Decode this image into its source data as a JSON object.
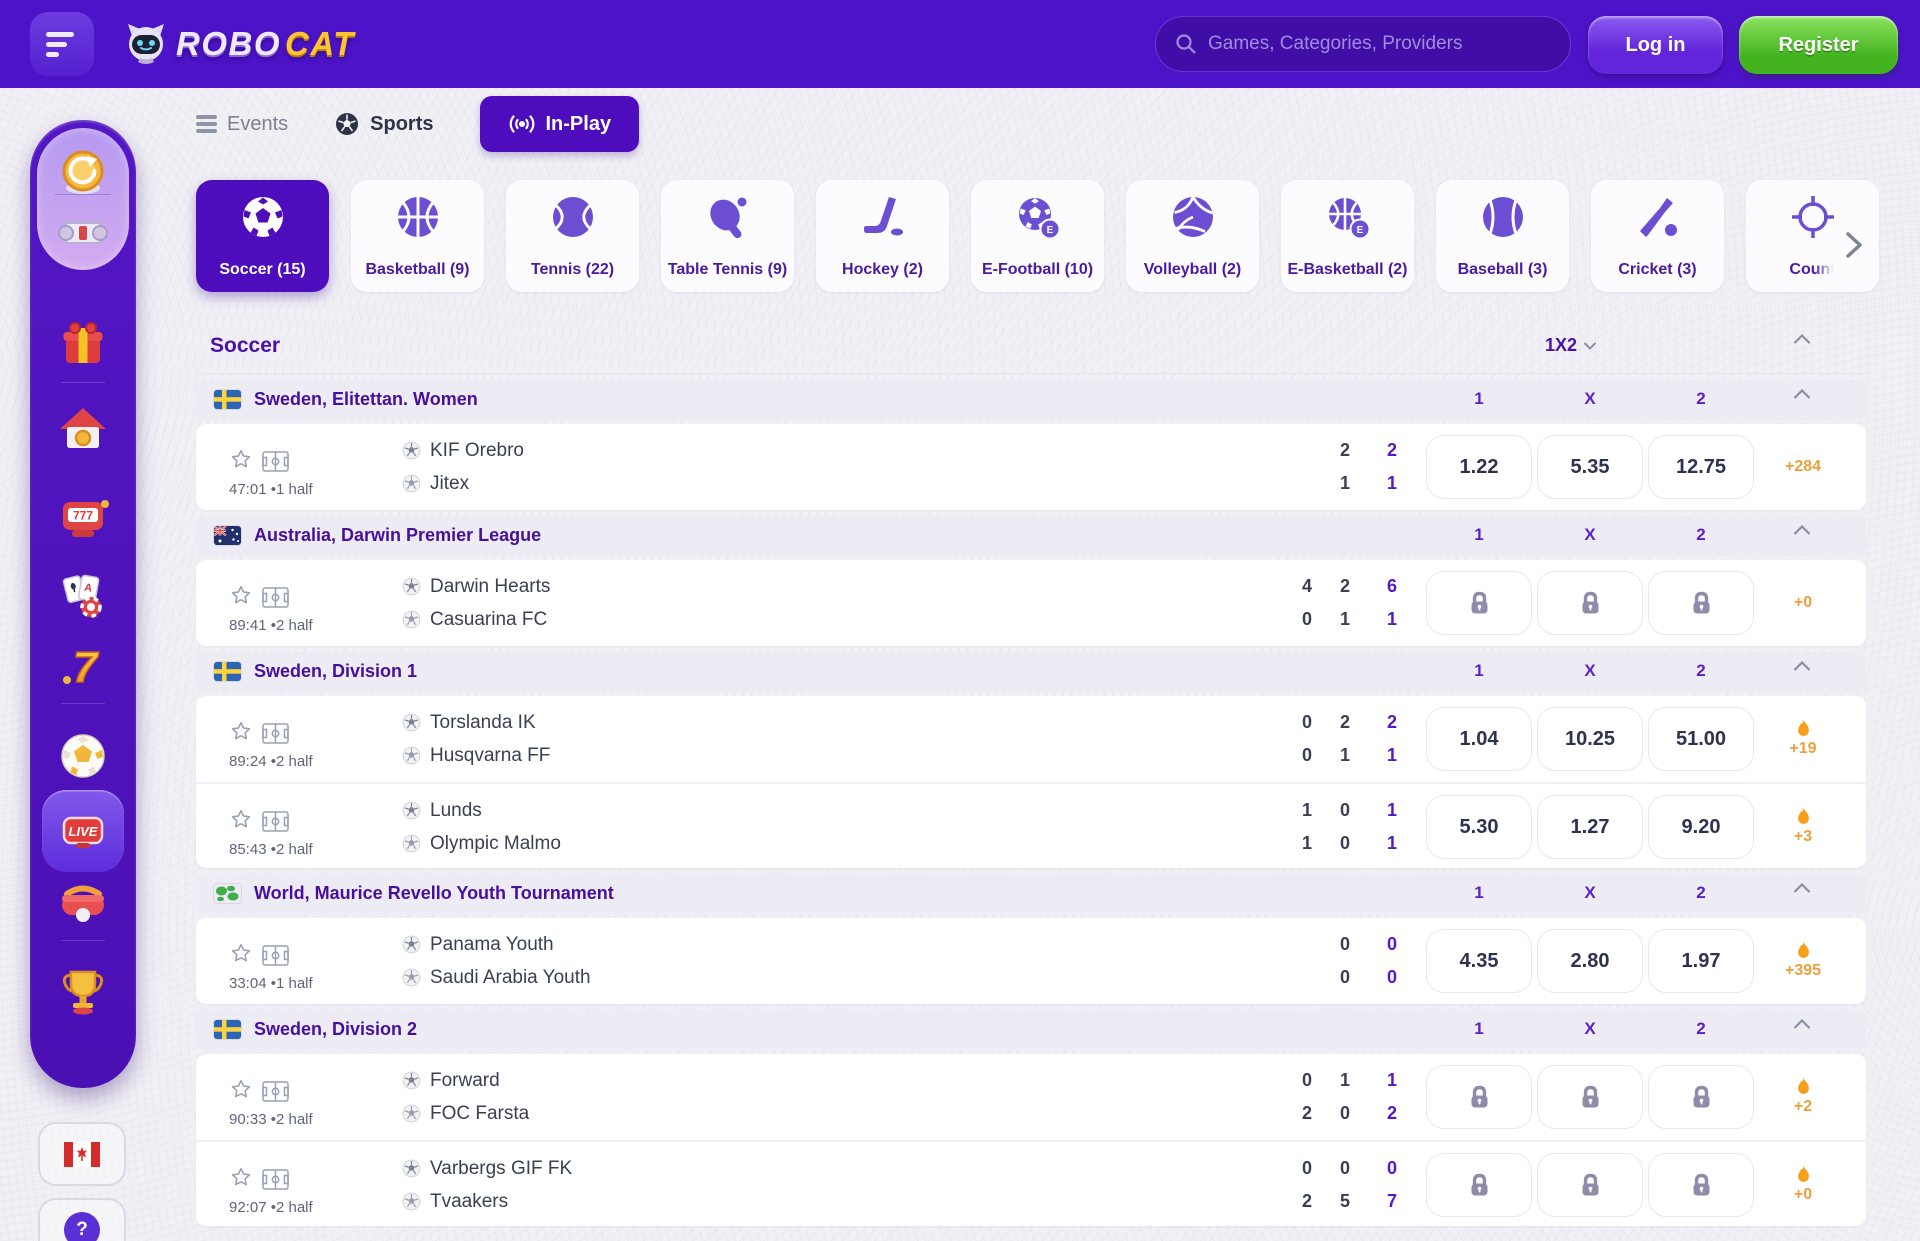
{
  "header": {
    "logo_robo": "Robo",
    "logo_cat": "Cat",
    "search_placeholder": "Games, Categories, Providers",
    "login_label": "Log in",
    "register_label": "Register"
  },
  "nav_tabs": [
    {
      "label": "Events",
      "icon": "menu-icon",
      "active": false
    },
    {
      "label": "Sports",
      "icon": "soccer-ball-icon",
      "active": false
    },
    {
      "label": "In-Play",
      "icon": "broadcast-icon",
      "active": true
    }
  ],
  "sport_chips": [
    {
      "label": "Soccer (15)",
      "icon": "soccer",
      "active": true
    },
    {
      "label": "Basketball (9)",
      "icon": "basketball",
      "active": false
    },
    {
      "label": "Tennis (22)",
      "icon": "tennis",
      "active": false
    },
    {
      "label": "Table Tennis (9)",
      "icon": "table-tennis",
      "active": false
    },
    {
      "label": "Hockey (2)",
      "icon": "hockey",
      "active": false
    },
    {
      "label": "E-Football (10)",
      "icon": "e-football",
      "active": false
    },
    {
      "label": "Volleyball (2)",
      "icon": "volleyball",
      "active": false
    },
    {
      "label": "E-Basketball (2)",
      "icon": "e-basketball",
      "active": false
    },
    {
      "label": "Baseball (3)",
      "icon": "baseball",
      "active": false
    },
    {
      "label": "Cricket (3)",
      "icon": "cricket",
      "active": false
    },
    {
      "label": "Count",
      "icon": "crosshair",
      "active": false,
      "truncated": true
    }
  ],
  "market": {
    "title": "Soccer",
    "selector": "1X2",
    "columns": [
      "1",
      "X",
      "2"
    ]
  },
  "groups": [
    {
      "league": "Sweden, Elitettan. Women",
      "flag": "sweden",
      "matches": [
        {
          "time": "47:01",
          "period": "•1 half",
          "teams": [
            "KIF Orebro",
            "Jitex"
          ],
          "scores": [
            [
              "2",
              "2"
            ],
            [
              "1",
              "1"
            ]
          ],
          "odds": [
            "1.22",
            "5.35",
            "12.75"
          ],
          "locked": false,
          "extra": "+284",
          "flame": false
        }
      ]
    },
    {
      "league": "Australia, Darwin Premier League",
      "flag": "australia",
      "matches": [
        {
          "time": "89:41",
          "period": "•2 half",
          "teams": [
            "Darwin Hearts",
            "Casuarina FC"
          ],
          "scores": [
            [
              "4",
              "2",
              "6"
            ],
            [
              "0",
              "1",
              "1"
            ]
          ],
          "odds": null,
          "locked": true,
          "extra": "+0",
          "flame": false
        }
      ]
    },
    {
      "league": "Sweden, Division 1",
      "flag": "sweden",
      "matches": [
        {
          "time": "89:24",
          "period": "•2 half",
          "teams": [
            "Torslanda IK",
            "Husqvarna FF"
          ],
          "scores": [
            [
              "0",
              "2",
              "2"
            ],
            [
              "0",
              "1",
              "1"
            ]
          ],
          "odds": [
            "1.04",
            "10.25",
            "51.00"
          ],
          "locked": false,
          "extra": "+19",
          "flame": true
        },
        {
          "time": "85:43",
          "period": "•2 half",
          "teams": [
            "Lunds",
            "Olympic Malmo"
          ],
          "scores": [
            [
              "1",
              "0",
              "1"
            ],
            [
              "1",
              "0",
              "1"
            ]
          ],
          "odds": [
            "5.30",
            "1.27",
            "9.20"
          ],
          "locked": false,
          "extra": "+3",
          "flame": true
        }
      ]
    },
    {
      "league": "World, Maurice Revello Youth Tournament",
      "flag": "world",
      "matches": [
        {
          "time": "33:04",
          "period": "•1 half",
          "teams": [
            "Panama Youth",
            "Saudi Arabia Youth"
          ],
          "scores": [
            [
              "0",
              "0"
            ],
            [
              "0",
              "0"
            ]
          ],
          "odds": [
            "4.35",
            "2.80",
            "1.97"
          ],
          "locked": false,
          "extra": "+395",
          "flame": true
        }
      ]
    },
    {
      "league": "Sweden, Division 2",
      "flag": "sweden",
      "matches": [
        {
          "time": "90:33",
          "period": "•2 half",
          "teams": [
            "Forward",
            "FOC Farsta"
          ],
          "scores": [
            [
              "0",
              "1",
              "1"
            ],
            [
              "2",
              "0",
              "2"
            ]
          ],
          "odds": null,
          "locked": true,
          "extra": "+2",
          "flame": true
        },
        {
          "time": "92:07",
          "period": "•2 half",
          "teams": [
            "Varbergs GIF FK",
            "Tvaakers"
          ],
          "scores": [
            [
              "0",
              "0",
              "0"
            ],
            [
              "2",
              "5",
              "7"
            ]
          ],
          "odds": null,
          "locked": true,
          "extra": "+0",
          "flame": true
        }
      ]
    }
  ],
  "sidebar": {
    "items": [
      {
        "icon": "coin-refresh-icon"
      },
      {
        "icon": "scroll-icon"
      },
      {
        "icon": "gift-icon",
        "divider_after": true
      },
      {
        "icon": "house-icon"
      },
      {
        "icon": "slot-machine-icon",
        "text": "777"
      },
      {
        "icon": "cards-chip-icon"
      },
      {
        "icon": "lucky-seven-icon",
        "text": "7",
        "divider_after": true
      },
      {
        "icon": "soccer-ball-3d-icon"
      },
      {
        "icon": "live-badge-icon",
        "text": "LIVE",
        "active": true
      },
      {
        "icon": "vr-headset-icon",
        "divider_after": true
      },
      {
        "icon": "trophy-icon"
      }
    ],
    "language_flag": "canada",
    "help_label": "?"
  },
  "colors": {
    "header_purple": "#4d13c8",
    "accent_purple": "#4d0dbd",
    "league_purple": "#470f9f",
    "odds_navy": "#2e3150",
    "bonus_orange": "#eca13c",
    "register_green": "#43b31f"
  }
}
